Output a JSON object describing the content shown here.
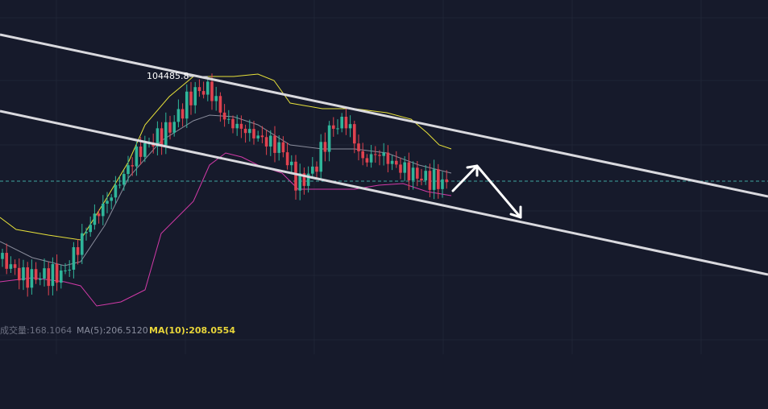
{
  "chart": {
    "high_label": "104485.8"
  },
  "volume_bar": {
    "volume": "成交量:168.1064",
    "ma5": "MA(5):206.5120",
    "ma10": "MA(10):208.0554"
  }
}
